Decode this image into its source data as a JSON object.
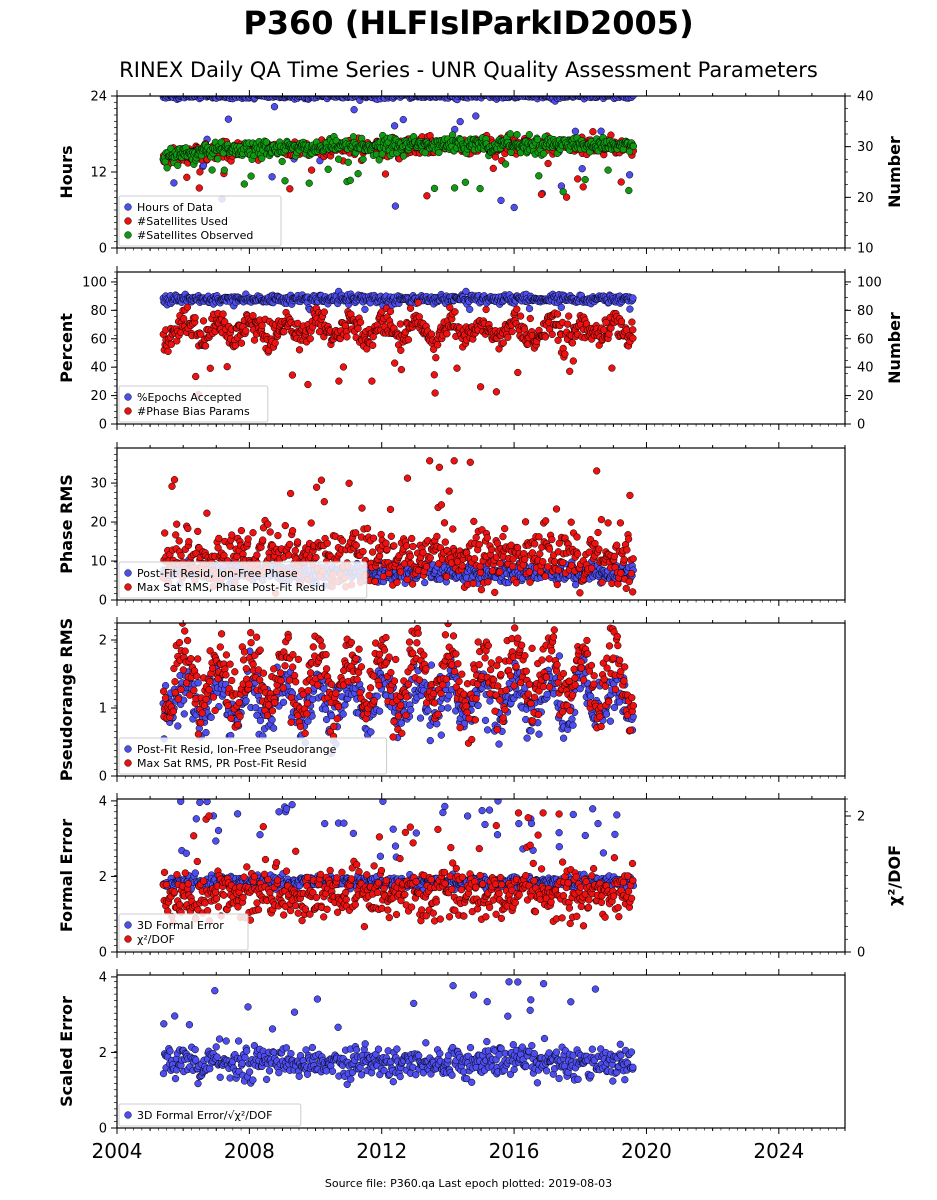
{
  "title": "P360 (HLFIslParkID2005)",
  "subtitle": "RINEX Daily QA Time Series - UNR Quality Assessment Parameters",
  "footer": "Source file: P360.qa Last epoch plotted: 2019-08-03",
  "colors": {
    "blue": "#4d4df0",
    "red": "#ee1111",
    "green": "#119911",
    "edge": "#000000"
  },
  "chart_data": [
    {
      "type": "scatter",
      "ylabel": "Hours",
      "ylabel_right": "Number",
      "xlim": [
        2004,
        2026
      ],
      "xticks": [
        "2004",
        "2008",
        "2012",
        "2016",
        "2020",
        "2024"
      ],
      "ylim": [
        0,
        24
      ],
      "yticks": [
        "0",
        "12",
        "24"
      ],
      "ylim_right": [
        10,
        40
      ],
      "yticks_right": [
        "10",
        "20",
        "30",
        "40"
      ],
      "legend_position": "lower-left",
      "series": [
        {
          "name": "Hours of Data",
          "color": "blue",
          "axis": "left",
          "base": 24,
          "spread": 0.2,
          "outlier_min": 6,
          "outlier_max": 23,
          "outlier_rate": 0.06
        },
        {
          "name": "#Satellites Used",
          "color": "red",
          "axis": "right",
          "base": 29,
          "spread": 0.8,
          "trend": [
            [
              2005.4,
              27.8
            ],
            [
              2007,
              29.2
            ],
            [
              2010,
              29.6
            ],
            [
              2013,
              30.2
            ],
            [
              2019.6,
              30.3
            ]
          ],
          "outlier_min": 20,
          "outlier_max": 28,
          "outlier_rate": 0.03
        },
        {
          "name": "#Satellites Observed",
          "color": "green",
          "axis": "right",
          "base": 29.5,
          "spread": 0.8,
          "trend": [
            [
              2005.4,
              27.8
            ],
            [
              2007,
              29.3
            ],
            [
              2010,
              29.7
            ],
            [
              2013,
              30.3
            ],
            [
              2019.6,
              30.4
            ]
          ],
          "outlier_min": 21,
          "outlier_max": 28,
          "outlier_rate": 0.04
        }
      ]
    },
    {
      "type": "scatter",
      "ylabel": "Percent",
      "ylabel_right": "Number",
      "xlim": [
        2004,
        2026
      ],
      "xticks": [
        "2004",
        "2008",
        "2012",
        "2016",
        "2020",
        "2024"
      ],
      "ylim": [
        0,
        107
      ],
      "yticks": [
        "0",
        "20",
        "40",
        "60",
        "80",
        "100"
      ],
      "ylim_right": [
        0,
        107
      ],
      "yticks_right": [
        "0",
        "20",
        "40",
        "60",
        "80",
        "100"
      ],
      "legend_position": "lower-left",
      "series": [
        {
          "name": "%Epochs Accepted",
          "color": "blue",
          "axis": "left",
          "base": 88,
          "spread": 1.5,
          "outlier_min": 80,
          "outlier_max": 86,
          "outlier_rate": 0.02
        },
        {
          "name": "#Phase Bias Params",
          "color": "red",
          "axis": "right",
          "base": 60,
          "spread": 5,
          "seasonal": 12,
          "outlier_min": 20,
          "outlier_max": 45,
          "outlier_rate": 0.03
        }
      ]
    },
    {
      "type": "scatter",
      "ylabel": "Phase RMS",
      "xlim": [
        2004,
        2026
      ],
      "xticks": [
        "2004",
        "2008",
        "2012",
        "2016",
        "2020",
        "2024"
      ],
      "ylim": [
        0,
        39
      ],
      "yticks": [
        "0",
        "10",
        "20",
        "30"
      ],
      "legend_position": "lower-left",
      "series": [
        {
          "name": "Post-Fit Resid, Ion-Free Phase",
          "color": "blue",
          "axis": "left",
          "base": 7,
          "spread": 1.2,
          "outlier_min": 4,
          "outlier_max": 9,
          "outlier_rate": 0.0
        },
        {
          "name": "Max Sat RMS, Phase Post-Fit Resid",
          "color": "red",
          "axis": "left",
          "base": 11,
          "spread": 3.5,
          "outlier_min": 18,
          "outlier_max": 37,
          "outlier_rate": 0.04
        }
      ]
    },
    {
      "type": "scatter",
      "ylabel": "Pseudorange RMS",
      "xlim": [
        2004,
        2026
      ],
      "xticks": [
        "2004",
        "2008",
        "2012",
        "2016",
        "2020",
        "2024"
      ],
      "ylim": [
        0,
        2.25
      ],
      "yticks": [
        "0",
        "1",
        "2"
      ],
      "legend_position": "lower-left",
      "series": [
        {
          "name": "Post-Fit Resid, Ion-Free Pseudorange",
          "color": "blue",
          "axis": "left",
          "base": 0.9,
          "spread": 0.2,
          "seasonal": 0.45,
          "outlier_min": 0.3,
          "outlier_max": 0.6,
          "outlier_rate": 0.0
        },
        {
          "name": "Max Sat RMS, PR Post-Fit Resid",
          "color": "red",
          "axis": "left",
          "base": 1.05,
          "spread": 0.25,
          "seasonal": 0.75,
          "outlier_min": 0.3,
          "outlier_max": 0.6,
          "outlier_rate": 0.0
        }
      ]
    },
    {
      "type": "scatter",
      "ylabel": "Formal Error",
      "ylabel_right": "χ²/DOF",
      "xlim": [
        2004,
        2026
      ],
      "xticks": [
        "2004",
        "2008",
        "2012",
        "2016",
        "2020",
        "2024"
      ],
      "ylim": [
        0,
        4.05
      ],
      "yticks": [
        "0",
        "2",
        "4"
      ],
      "ylim_right": [
        0,
        2.25
      ],
      "yticks_right": [
        "0",
        "2"
      ],
      "legend_position": "lower-left",
      "series": [
        {
          "name": "3D Formal Error",
          "color": "blue",
          "axis": "left",
          "base": 1.85,
          "spread": 0.08,
          "outlier_min": 2.5,
          "outlier_max": 4.0,
          "outlier_rate": 0.06
        },
        {
          "name": "χ²/DOF",
          "color": "red",
          "axis": "right",
          "base": 0.85,
          "spread": 0.18,
          "outlier_min": 1.3,
          "outlier_max": 2.1,
          "outlier_rate": 0.04
        }
      ]
    },
    {
      "type": "scatter",
      "ylabel": "Scaled Error",
      "xlim": [
        2004,
        2026
      ],
      "xticks": [
        "2004",
        "2008",
        "2012",
        "2016",
        "2020",
        "2024"
      ],
      "ylim": [
        0,
        4.05
      ],
      "yticks": [
        "0",
        "2",
        "4"
      ],
      "legend_position": "lower-left",
      "series": [
        {
          "name": "3D Formal Error/√χ²/DOF",
          "color": "blue",
          "axis": "left",
          "base": 1.75,
          "spread": 0.22,
          "outlier_min": 2.6,
          "outlier_max": 3.9,
          "outlier_rate": 0.03
        }
      ]
    }
  ],
  "x_range_data": [
    2005.4,
    2019.6
  ]
}
